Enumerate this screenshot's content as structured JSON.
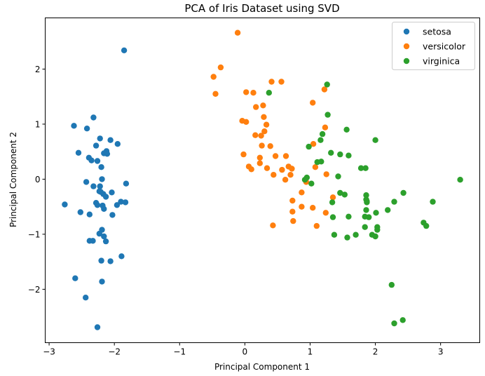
{
  "chart_data": {
    "type": "scatter",
    "title": "PCA of Iris Dataset using SVD",
    "xlabel": "Principal Component 1",
    "ylabel": "Principal Component 2",
    "xlim": [
      -3.06,
      3.6
    ],
    "ylim": [
      -2.97,
      2.93
    ],
    "xticks": [
      -3,
      -2,
      -1,
      0,
      1,
      2,
      3
    ],
    "yticks": [
      -2,
      -1,
      0,
      1,
      2
    ],
    "xtick_labels": [
      "−3",
      "−2",
      "−1",
      "0",
      "1",
      "2",
      "3"
    ],
    "ytick_labels": [
      "−2",
      "−1",
      "0",
      "1",
      "2"
    ],
    "grid": false,
    "legend": {
      "placement": "top-right"
    },
    "series": [
      {
        "name": "setosa",
        "color": "#1f77b4",
        "points": [
          [
            -1.85,
            2.34
          ],
          [
            -2.32,
            1.12
          ],
          [
            -2.62,
            0.97
          ],
          [
            -2.42,
            0.92
          ],
          [
            -2.22,
            0.74
          ],
          [
            -2.06,
            0.71
          ],
          [
            -2.28,
            0.61
          ],
          [
            -1.95,
            0.64
          ],
          [
            -2.55,
            0.48
          ],
          [
            -2.12,
            0.51
          ],
          [
            -2.16,
            0.47
          ],
          [
            -2.11,
            0.46
          ],
          [
            -2.39,
            0.39
          ],
          [
            -2.35,
            0.34
          ],
          [
            -2.26,
            0.33
          ],
          [
            -2.2,
            0.22
          ],
          [
            -2.19,
            0.0
          ],
          [
            -2.43,
            -0.05
          ],
          [
            -1.82,
            -0.08
          ],
          [
            -2.32,
            -0.13
          ],
          [
            -2.22,
            -0.13
          ],
          [
            -2.23,
            -0.22
          ],
          [
            -2.04,
            -0.24
          ],
          [
            -2.17,
            -0.27
          ],
          [
            -2.13,
            -0.32
          ],
          [
            -2.76,
            -0.46
          ],
          [
            -2.28,
            -0.43
          ],
          [
            -2.26,
            -0.47
          ],
          [
            -2.18,
            -0.48
          ],
          [
            -2.16,
            -0.54
          ],
          [
            -1.9,
            -0.41
          ],
          [
            -1.96,
            -0.47
          ],
          [
            -1.83,
            -0.42
          ],
          [
            -2.52,
            -0.6
          ],
          [
            -2.38,
            -0.64
          ],
          [
            -2.03,
            -0.65
          ],
          [
            -2.19,
            -0.92
          ],
          [
            -2.23,
            -0.99
          ],
          [
            -2.16,
            -1.04
          ],
          [
            -2.13,
            -1.13
          ],
          [
            -2.38,
            -1.12
          ],
          [
            -2.33,
            -1.12
          ],
          [
            -2.2,
            -1.48
          ],
          [
            -2.06,
            -1.49
          ],
          [
            -1.89,
            -1.4
          ],
          [
            -2.6,
            -1.8
          ],
          [
            -2.19,
            -1.86
          ],
          [
            -2.44,
            -2.15
          ],
          [
            -2.26,
            -2.69
          ],
          [
            -2.21,
            -0.23
          ]
        ]
      },
      {
        "name": "versicolor",
        "color": "#ff7f0e",
        "points": [
          [
            -0.11,
            2.66
          ],
          [
            -0.37,
            2.03
          ],
          [
            -0.48,
            1.86
          ],
          [
            -0.45,
            1.55
          ],
          [
            0.41,
            1.77
          ],
          [
            0.56,
            1.77
          ],
          [
            0.02,
            1.58
          ],
          [
            0.13,
            1.57
          ],
          [
            1.22,
            1.63
          ],
          [
            1.04,
            1.39
          ],
          [
            0.28,
            1.34
          ],
          [
            0.17,
            1.31
          ],
          [
            0.29,
            1.13
          ],
          [
            -0.04,
            1.06
          ],
          [
            0.02,
            1.04
          ],
          [
            0.33,
            0.99
          ],
          [
            1.23,
            0.94
          ],
          [
            0.3,
            0.87
          ],
          [
            0.16,
            0.8
          ],
          [
            0.25,
            0.79
          ],
          [
            0.26,
            0.61
          ],
          [
            0.39,
            0.6
          ],
          [
            1.05,
            0.64
          ],
          [
            -0.02,
            0.45
          ],
          [
            0.23,
            0.39
          ],
          [
            0.47,
            0.42
          ],
          [
            0.63,
            0.42
          ],
          [
            0.23,
            0.29
          ],
          [
            0.06,
            0.23
          ],
          [
            0.1,
            0.18
          ],
          [
            0.34,
            0.2
          ],
          [
            0.67,
            0.23
          ],
          [
            0.72,
            0.19
          ],
          [
            0.57,
            0.17
          ],
          [
            1.08,
            0.22
          ],
          [
            0.44,
            0.08
          ],
          [
            0.7,
            0.08
          ],
          [
            1.25,
            0.09
          ],
          [
            0.62,
            -0.01
          ],
          [
            0.87,
            -0.24
          ],
          [
            1.35,
            -0.33
          ],
          [
            0.73,
            -0.39
          ],
          [
            0.87,
            -0.5
          ],
          [
            1.04,
            -0.52
          ],
          [
            0.73,
            -0.59
          ],
          [
            1.24,
            -0.61
          ],
          [
            0.74,
            -0.76
          ],
          [
            0.43,
            -0.84
          ],
          [
            1.1,
            -0.85
          ],
          [
            0.94,
            -0.05
          ]
        ]
      },
      {
        "name": "virginica",
        "color": "#2ca02c",
        "points": [
          [
            0.37,
            1.57
          ],
          [
            1.26,
            1.72
          ],
          [
            1.27,
            1.17
          ],
          [
            1.56,
            0.9
          ],
          [
            1.19,
            0.82
          ],
          [
            1.16,
            0.71
          ],
          [
            2.0,
            0.71
          ],
          [
            0.98,
            0.59
          ],
          [
            1.32,
            0.48
          ],
          [
            1.46,
            0.45
          ],
          [
            1.59,
            0.43
          ],
          [
            1.11,
            0.31
          ],
          [
            1.17,
            0.32
          ],
          [
            1.78,
            0.2
          ],
          [
            1.85,
            0.2
          ],
          [
            0.92,
            -0.01
          ],
          [
            0.95,
            0.03
          ],
          [
            1.02,
            -0.08
          ],
          [
            1.43,
            0.05
          ],
          [
            1.46,
            -0.25
          ],
          [
            1.53,
            -0.28
          ],
          [
            1.86,
            -0.29
          ],
          [
            1.86,
            -0.37
          ],
          [
            1.87,
            -0.42
          ],
          [
            2.43,
            -0.25
          ],
          [
            2.29,
            -0.41
          ],
          [
            2.88,
            -0.41
          ],
          [
            3.3,
            -0.01
          ],
          [
            1.34,
            -0.42
          ],
          [
            1.86,
            -0.56
          ],
          [
            2.19,
            -0.56
          ],
          [
            2.01,
            -0.61
          ],
          [
            1.35,
            -0.69
          ],
          [
            1.59,
            -0.68
          ],
          [
            1.84,
            -0.68
          ],
          [
            1.9,
            -0.69
          ],
          [
            1.84,
            -0.87
          ],
          [
            2.03,
            -0.87
          ],
          [
            2.03,
            -0.92
          ],
          [
            1.37,
            -1.01
          ],
          [
            1.7,
            -1.01
          ],
          [
            1.57,
            -1.06
          ],
          [
            1.95,
            -1.01
          ],
          [
            2.0,
            -1.04
          ],
          [
            2.74,
            -0.79
          ],
          [
            2.78,
            -0.85
          ],
          [
            2.25,
            -1.92
          ],
          [
            2.29,
            -2.62
          ],
          [
            2.42,
            -2.56
          ],
          [
            1.87,
            -0.4
          ]
        ]
      }
    ]
  }
}
